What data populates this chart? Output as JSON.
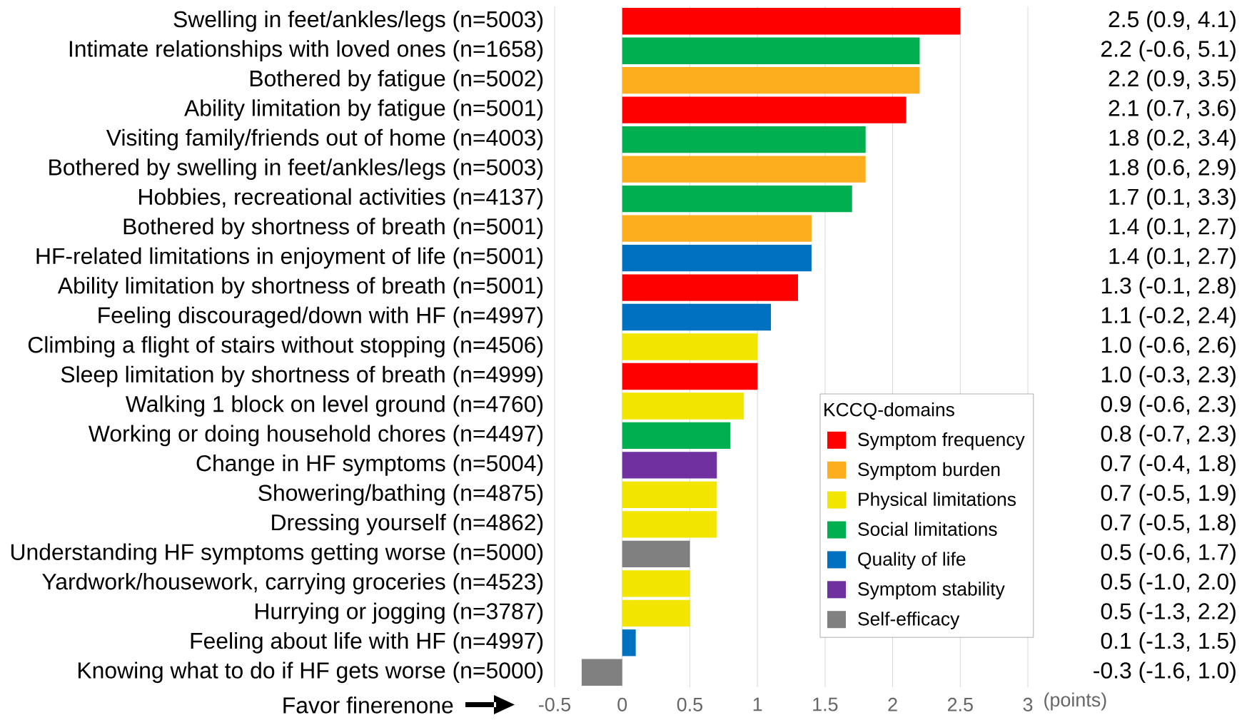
{
  "chart_data": {
    "type": "bar",
    "orientation": "horizontal",
    "categories": [
      "Swelling in feet/ankles/legs (n=5003)",
      "Intimate relationships with loved ones (n=1658)",
      "Bothered by fatigue (n=5002)",
      "Ability limitation by fatigue (n=5001)",
      "Visiting family/friends out of home (n=4003)",
      "Bothered by swelling in feet/ankles/legs (n=5003)",
      "Hobbies, recreational activities (n=4137)",
      "Bothered by shortness of breath (n=5001)",
      "HF-related limitations in enjoyment of life (n=5001)",
      "Ability limitation by shortness of breath (n=5001)",
      "Feeling discouraged/down with HF (n=4997)",
      "Climbing a flight of stairs without stopping (n=4506)",
      "Sleep limitation by shortness of breath (n=4999)",
      "Walking 1 block on level ground (n=4760)",
      "Working or doing household chores (n=4497)",
      "Change in HF symptoms (n=5004)",
      "Showering/bathing (n=4875)",
      "Dressing yourself (n=4862)",
      "Understanding HF symptoms getting worse (n=5000)",
      "Yardwork/housework, carrying groceries (n=4523)",
      "Hurrying or jogging (n=3787)",
      "Feeling about life with HF (n=4997)",
      "Knowing what to do if HF gets worse (n=5000)"
    ],
    "series": [
      {
        "name": "Symptom frequency",
        "color": "#ff0000",
        "values": [
          2.5,
          null,
          null,
          2.1,
          null,
          null,
          null,
          null,
          null,
          1.3,
          null,
          null,
          1.0,
          null,
          null,
          null,
          null,
          null,
          null,
          null,
          null,
          null,
          null
        ]
      },
      {
        "name": "Symptom burden",
        "color": "#fdae1f",
        "values": [
          null,
          null,
          2.2,
          null,
          null,
          1.8,
          null,
          1.4,
          null,
          null,
          null,
          null,
          null,
          null,
          null,
          null,
          null,
          null,
          null,
          null,
          null,
          null,
          null
        ]
      },
      {
        "name": "Physical limitations",
        "color": "#f2e600",
        "values": [
          null,
          null,
          null,
          null,
          null,
          null,
          null,
          null,
          null,
          null,
          null,
          1.0,
          null,
          0.9,
          null,
          null,
          0.7,
          0.7,
          null,
          0.5,
          0.5,
          null,
          null
        ]
      },
      {
        "name": "Social limitations",
        "color": "#00b050",
        "values": [
          null,
          2.2,
          null,
          null,
          1.8,
          null,
          1.7,
          null,
          null,
          null,
          null,
          null,
          null,
          null,
          0.8,
          null,
          null,
          null,
          null,
          null,
          null,
          null,
          null
        ]
      },
      {
        "name": "Quality of life",
        "color": "#0070c0",
        "values": [
          null,
          null,
          null,
          null,
          null,
          null,
          null,
          null,
          1.4,
          null,
          1.1,
          null,
          null,
          null,
          null,
          null,
          null,
          null,
          null,
          null,
          null,
          0.1,
          null
        ]
      },
      {
        "name": "Symptom stability",
        "color": "#7030a0",
        "values": [
          null,
          null,
          null,
          null,
          null,
          null,
          null,
          null,
          null,
          null,
          null,
          null,
          null,
          null,
          null,
          0.7,
          null,
          null,
          null,
          null,
          null,
          null,
          null
        ]
      },
      {
        "name": "Self-efficacy",
        "color": "#808080",
        "values": [
          null,
          null,
          null,
          null,
          null,
          null,
          null,
          null,
          null,
          null,
          null,
          null,
          null,
          null,
          null,
          null,
          null,
          null,
          0.5,
          null,
          null,
          null,
          -0.3
        ]
      }
    ],
    "xlim": [
      -0.5,
      3
    ],
    "xticks": [
      -0.5,
      0,
      0.5,
      1,
      1.5,
      2,
      2.5,
      3
    ],
    "xlabel": "(points)",
    "legend_title": "KCCQ-domains",
    "legend": "bottom right",
    "grid": "x",
    "annotations": [
      "2.5 (0.9, 4.1)",
      "2.2 (-0.6, 5.1)",
      "2.2 (0.9, 3.5)",
      "2.1 (0.7, 3.6)",
      "1.8 (0.2, 3.4)",
      "1.8 (0.6, 2.9)",
      "1.7 (0.1, 3.3)",
      "1.4 (0.1, 2.7)",
      "1.4 (0.1, 2.7)",
      "1.3 (-0.1, 2.8)",
      "1.1 (-0.2, 2.4)",
      "1.0 (-0.6, 2.6)",
      "1.0 (-0.3, 2.3)",
      "0.9 (-0.6, 2.3)",
      "0.8 (-0.7, 2.3)",
      "0.7 (-0.4, 1.8)",
      "0.7 (-0.5, 1.9)",
      "0.7 (-0.5, 1.8)",
      "0.5 (-0.6, 1.7)",
      "0.5 (-1.0, 2.0)",
      "0.5 (-1.3, 2.2)",
      "0.1 (-1.3, 1.5)",
      "-0.3 (-1.6, 1.0)",
      "Favor finerenone"
    ]
  }
}
